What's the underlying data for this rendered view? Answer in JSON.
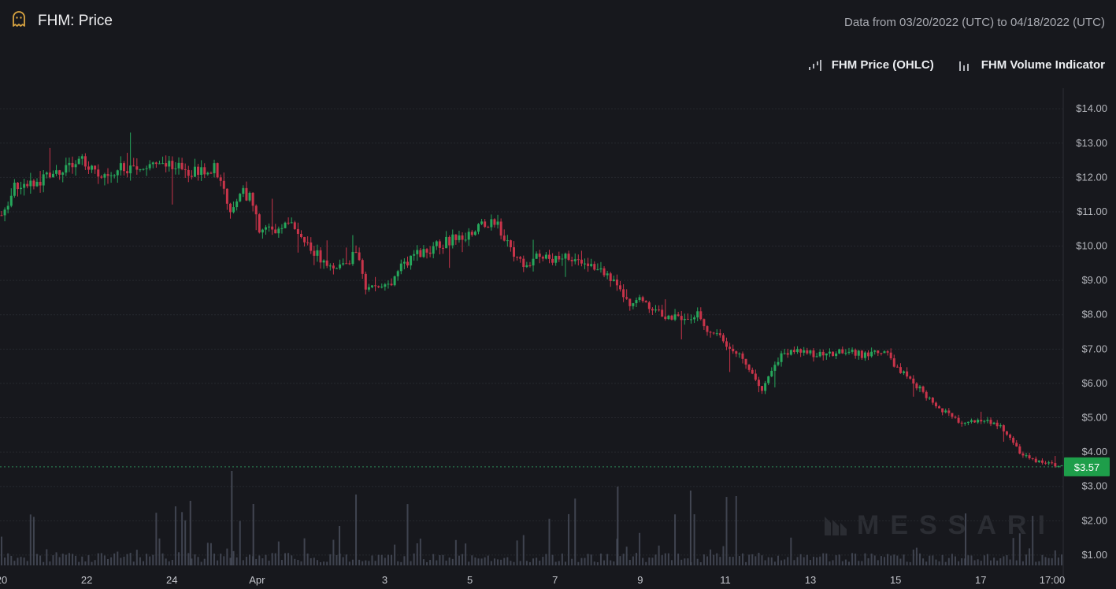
{
  "header": {
    "title": "FHM: Price",
    "date_range": "Data from 03/20/2022 (UTC) to 04/18/2022 (UTC)",
    "logo_icon": "ghost-icon"
  },
  "legend": {
    "items": [
      {
        "label": "FHM Price (OHLC)",
        "icon": "ohlc-icon"
      },
      {
        "label": "FHM Volume Indicator",
        "icon": "volume-bars-icon"
      }
    ]
  },
  "watermark": "MESSARI",
  "colors": {
    "up": "#26a65b",
    "down": "#c8344a",
    "volume": "#4a4f5c",
    "last_price_bg": "#1e9e4a",
    "grid": "#26282e",
    "background": "#17181d"
  },
  "chart_data": {
    "type": "candlestick",
    "title": "FHM: Price",
    "y_axis": {
      "ticks": [
        "$1.00",
        "$2.00",
        "$3.00",
        "$4.00",
        "$5.00",
        "$6.00",
        "$7.00",
        "$8.00",
        "$9.00",
        "$10.00",
        "$11.00",
        "$12.00",
        "$13.00",
        "$14.00"
      ],
      "min": 0.7,
      "max": 14.6
    },
    "x_axis": {
      "ticks": [
        "20",
        "22",
        "24",
        "Apr",
        "3",
        "5",
        "7",
        "9",
        "11",
        "13",
        "15",
        "17",
        "17:00"
      ],
      "start": "03/20/2022",
      "end": "04/18/2022"
    },
    "last_price": {
      "label": "$3.57",
      "value": 3.57
    },
    "price_keypoints": [
      [
        0.0,
        10.9
      ],
      [
        0.4,
        11.7
      ],
      [
        1.0,
        11.8
      ],
      [
        1.5,
        12.1
      ],
      [
        2.0,
        12.2
      ],
      [
        2.4,
        12.6
      ],
      [
        2.8,
        12.1
      ],
      [
        3.3,
        12.2
      ],
      [
        4.0,
        12.3
      ],
      [
        4.6,
        12.3
      ],
      [
        5.2,
        12.4
      ],
      [
        5.6,
        12.1
      ],
      [
        6.0,
        12.2
      ],
      [
        6.4,
        12.3
      ],
      [
        6.6,
        11.8
      ],
      [
        6.9,
        11.1
      ],
      [
        7.2,
        11.6
      ],
      [
        7.5,
        11.4
      ],
      [
        7.8,
        10.4
      ],
      [
        8.2,
        10.5
      ],
      [
        8.7,
        10.7
      ],
      [
        9.2,
        10.0
      ],
      [
        9.6,
        9.7
      ],
      [
        10.0,
        9.2
      ],
      [
        10.4,
        9.5
      ],
      [
        10.7,
        9.8
      ],
      [
        11.0,
        8.8
      ],
      [
        11.3,
        8.9
      ],
      [
        11.6,
        8.75
      ],
      [
        12.0,
        9.3
      ],
      [
        12.4,
        9.7
      ],
      [
        12.9,
        9.9
      ],
      [
        13.6,
        10.2
      ],
      [
        14.2,
        10.4
      ],
      [
        14.6,
        10.7
      ],
      [
        15.0,
        10.55
      ],
      [
        15.4,
        9.9
      ],
      [
        15.8,
        9.3
      ],
      [
        16.2,
        9.7
      ],
      [
        16.6,
        9.6
      ],
      [
        17.0,
        9.7
      ],
      [
        17.4,
        9.6
      ],
      [
        17.8,
        9.5
      ],
      [
        18.2,
        9.2
      ],
      [
        18.6,
        8.8
      ],
      [
        18.9,
        8.3
      ],
      [
        19.2,
        8.5
      ],
      [
        19.6,
        8.2
      ],
      [
        20.0,
        8.0
      ],
      [
        20.5,
        7.95
      ],
      [
        21.0,
        8.0
      ],
      [
        21.3,
        7.5
      ],
      [
        21.7,
        7.4
      ],
      [
        22.0,
        7.0
      ],
      [
        22.5,
        6.6
      ],
      [
        22.9,
        5.8
      ],
      [
        23.2,
        6.2
      ],
      [
        23.6,
        6.9
      ],
      [
        24.1,
        7.0
      ],
      [
        24.6,
        6.8
      ],
      [
        25.1,
        6.9
      ],
      [
        25.6,
        6.9
      ],
      [
        26.2,
        6.8
      ],
      [
        26.6,
        7.0
      ],
      [
        27.0,
        6.5
      ],
      [
        27.4,
        6.1
      ],
      [
        27.8,
        5.8
      ],
      [
        28.2,
        5.3
      ],
      [
        28.6,
        5.1
      ],
      [
        29.0,
        4.8
      ],
      [
        29.4,
        4.9
      ],
      [
        29.8,
        4.9
      ],
      [
        30.1,
        4.8
      ],
      [
        30.5,
        4.3
      ],
      [
        30.8,
        3.9
      ],
      [
        31.2,
        3.75
      ],
      [
        31.6,
        3.65
      ],
      [
        32.0,
        3.57
      ]
    ],
    "volume_note": "Volume bars shown at bottom; values not labeled"
  }
}
